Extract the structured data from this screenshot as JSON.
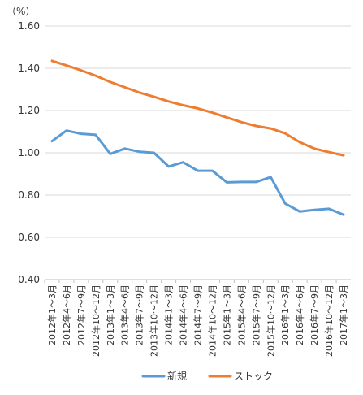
{
  "chart_data": {
    "type": "line",
    "y_unit_label": "（%）",
    "categories": [
      "2012年1～3月",
      "2012年4～6月",
      "2012年7～9月",
      "2012年10～12月",
      "2013年1～3月",
      "2013年4～6月",
      "2013年7～9月",
      "2013年10～12月",
      "2014年1～3月",
      "2014年4～6月",
      "2014年7～9月",
      "2014年10～12月",
      "2015年1～3月",
      "2015年4～6月",
      "2015年7～9月",
      "2015年10～12月",
      "2016年1～3月",
      "2016年4～6月",
      "2016年7～9月",
      "2016年10～12月",
      "2017年1～3月"
    ],
    "series": [
      {
        "name": "新規",
        "color": "#5b9bd5",
        "values": [
          1.055,
          1.105,
          1.09,
          1.085,
          0.995,
          1.02,
          1.005,
          1.0,
          0.935,
          0.955,
          0.915,
          0.915,
          0.86,
          0.862,
          0.862,
          0.885,
          0.76,
          0.722,
          0.73,
          0.735,
          0.707
        ]
      },
      {
        "name": "ストック",
        "color": "#ed7d31",
        "values": [
          1.435,
          1.413,
          1.39,
          1.365,
          1.335,
          1.31,
          1.285,
          1.265,
          1.243,
          1.225,
          1.21,
          1.19,
          1.167,
          1.145,
          1.127,
          1.115,
          1.092,
          1.05,
          1.02,
          1.003,
          0.988
        ]
      }
    ],
    "yticks": [
      "0.40",
      "0.60",
      "0.80",
      "1.00",
      "1.20",
      "1.40",
      "1.60"
    ],
    "ylim": [
      0.4,
      1.6
    ],
    "grid": true,
    "legend_position": "bottom"
  }
}
